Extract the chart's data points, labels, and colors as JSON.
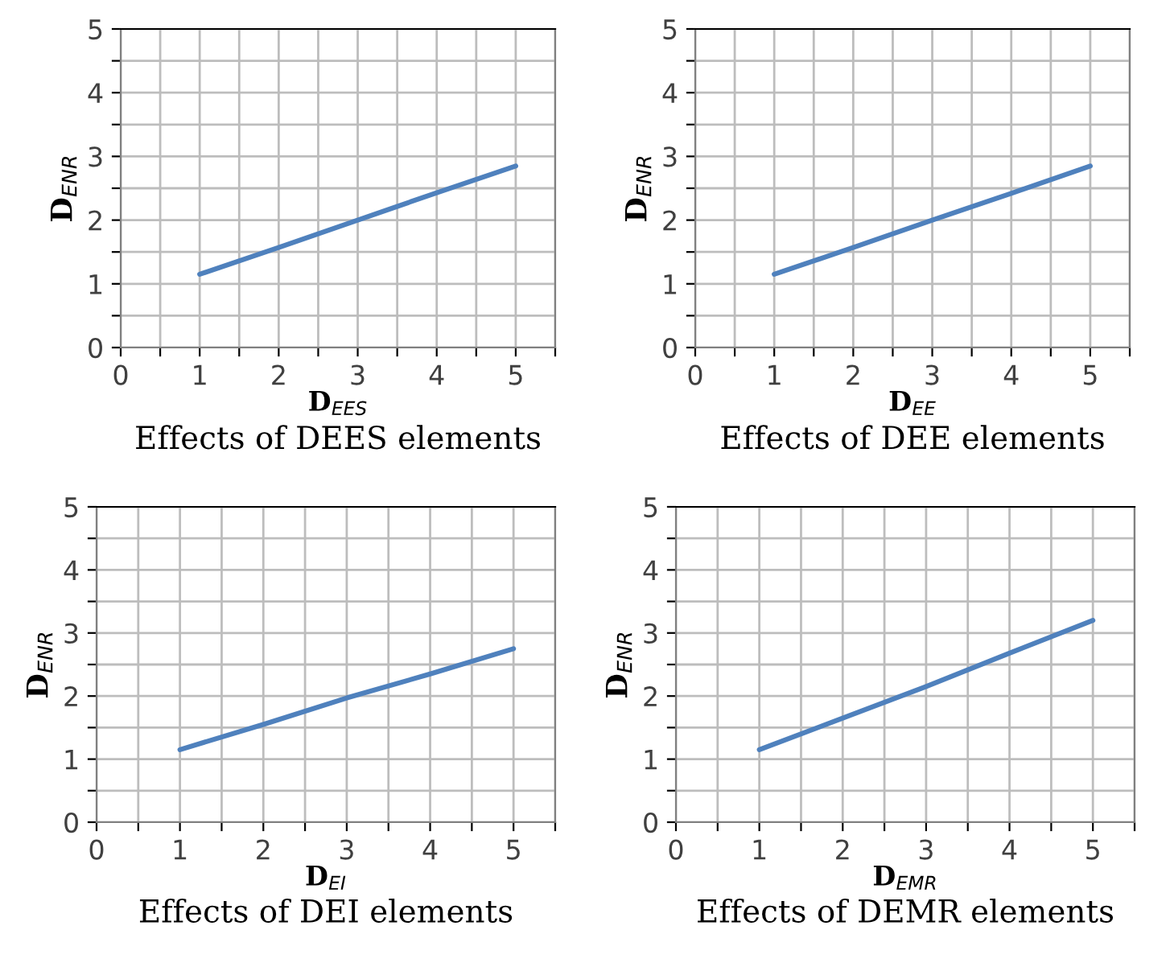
{
  "chart_data": [
    {
      "type": "line",
      "title": "Effects of DEES elements",
      "xlabel": "D$_{EES}$",
      "ylabel": "D$_{ENR}$",
      "x": [
        1,
        2,
        3,
        4,
        5
      ],
      "series": [
        {
          "color": "#4f81bd",
          "values": [
            1.15,
            1.57,
            2.0,
            2.43,
            2.85
          ]
        }
      ],
      "xlim": [
        0,
        5.5
      ],
      "xticks": [
        0,
        {
          "value": 0.5,
          "label": null
        },
        1,
        {
          "value": 1.5,
          "label": null
        },
        2,
        {
          "value": 2.5,
          "label": null
        },
        3,
        {
          "value": 3.5,
          "label": null
        },
        4,
        {
          "value": 4.5,
          "label": null
        },
        5,
        {
          "value": 5.5,
          "label": null
        }
      ],
      "ylim": [
        0,
        5
      ],
      "yticks": [
        0,
        {
          "value": 0.5,
          "label": null
        },
        1,
        {
          "value": 1.5,
          "label": null
        },
        2,
        {
          "value": 2.5,
          "label": null
        },
        3,
        {
          "value": 3.5,
          "label": null
        },
        4,
        {
          "value": 4.5,
          "label": null
        },
        5
      ],
      "grid": true,
      "marker": "none",
      "line_style": "solid"
    },
    {
      "type": "line",
      "title": "Effects of DEE elements",
      "xlabel": "D$_{EE}$",
      "ylabel": "D$_{ENR}$",
      "x": [
        1,
        2,
        3,
        4,
        5
      ],
      "series": [
        {
          "color": "#4f81bd",
          "values": [
            1.15,
            1.57,
            2.0,
            2.42,
            2.85
          ]
        }
      ],
      "xlim": [
        0,
        5.5
      ],
      "xticks": [
        0,
        {
          "value": 0.5,
          "label": null
        },
        1,
        {
          "value": 1.5,
          "label": null
        },
        2,
        {
          "value": 2.5,
          "label": null
        },
        3,
        {
          "value": 3.5,
          "label": null
        },
        4,
        {
          "value": 4.5,
          "label": null
        },
        5,
        {
          "value": 5.5,
          "label": null
        }
      ],
      "ylim": [
        0,
        5
      ],
      "yticks": [
        0,
        {
          "value": 0.5,
          "label": null
        },
        1,
        {
          "value": 1.5,
          "label": null
        },
        2,
        {
          "value": 2.5,
          "label": null
        },
        3,
        {
          "value": 3.5,
          "label": null
        },
        4,
        {
          "value": 4.5,
          "label": null
        },
        5
      ],
      "grid": true,
      "marker": "none",
      "line_style": "solid"
    },
    {
      "type": "line",
      "title": "Effects of DEI elements",
      "xlabel": "D$_{EI}$",
      "ylabel": "D$_{ENR}$",
      "x": [
        1,
        2,
        3,
        4,
        5
      ],
      "series": [
        {
          "color": "#4f81bd",
          "values": [
            1.15,
            1.55,
            1.97,
            2.35,
            2.75
          ]
        }
      ],
      "xlim": [
        0,
        5.5
      ],
      "xticks": [
        0,
        {
          "value": 0.5,
          "label": null
        },
        1,
        {
          "value": 1.5,
          "label": null
        },
        2,
        {
          "value": 2.5,
          "label": null
        },
        3,
        {
          "value": 3.5,
          "label": null
        },
        4,
        {
          "value": 4.5,
          "label": null
        },
        5,
        {
          "value": 5.5,
          "label": null
        }
      ],
      "ylim": [
        0,
        5
      ],
      "yticks": [
        0,
        {
          "value": 0.5,
          "label": null
        },
        1,
        {
          "value": 1.5,
          "label": null
        },
        2,
        {
          "value": 2.5,
          "label": null
        },
        3,
        {
          "value": 3.5,
          "label": null
        },
        4,
        {
          "value": 4.5,
          "label": null
        },
        5
      ],
      "grid": true,
      "marker": "none",
      "line_style": "solid"
    },
    {
      "type": "line",
      "title": "Effects of DEMR elements",
      "xlabel": "D$_{EMR}$",
      "ylabel": "D$_{ENR}$",
      "x": [
        1,
        2,
        3,
        4,
        5
      ],
      "series": [
        {
          "color": "#4f81bd",
          "values": [
            1.15,
            1.65,
            2.15,
            2.68,
            3.2
          ]
        }
      ],
      "xlim": [
        0,
        5.5
      ],
      "xticks": [
        0,
        {
          "value": 0.5,
          "label": null
        },
        1,
        {
          "value": 1.5,
          "label": null
        },
        2,
        {
          "value": 2.5,
          "label": null
        },
        3,
        {
          "value": 3.5,
          "label": null
        },
        4,
        {
          "value": 4.5,
          "label": null
        },
        5,
        {
          "value": 5.5,
          "label": null
        }
      ],
      "ylim": [
        0,
        5
      ],
      "yticks": [
        0,
        {
          "value": 0.5,
          "label": null
        },
        1,
        {
          "value": 1.5,
          "label": null
        },
        2,
        {
          "value": 2.5,
          "label": null
        },
        3,
        {
          "value": 3.5,
          "label": null
        },
        4,
        {
          "value": 4.5,
          "label": null
        },
        5
      ],
      "grid": true,
      "marker": "none",
      "line_style": "solid"
    }
  ]
}
